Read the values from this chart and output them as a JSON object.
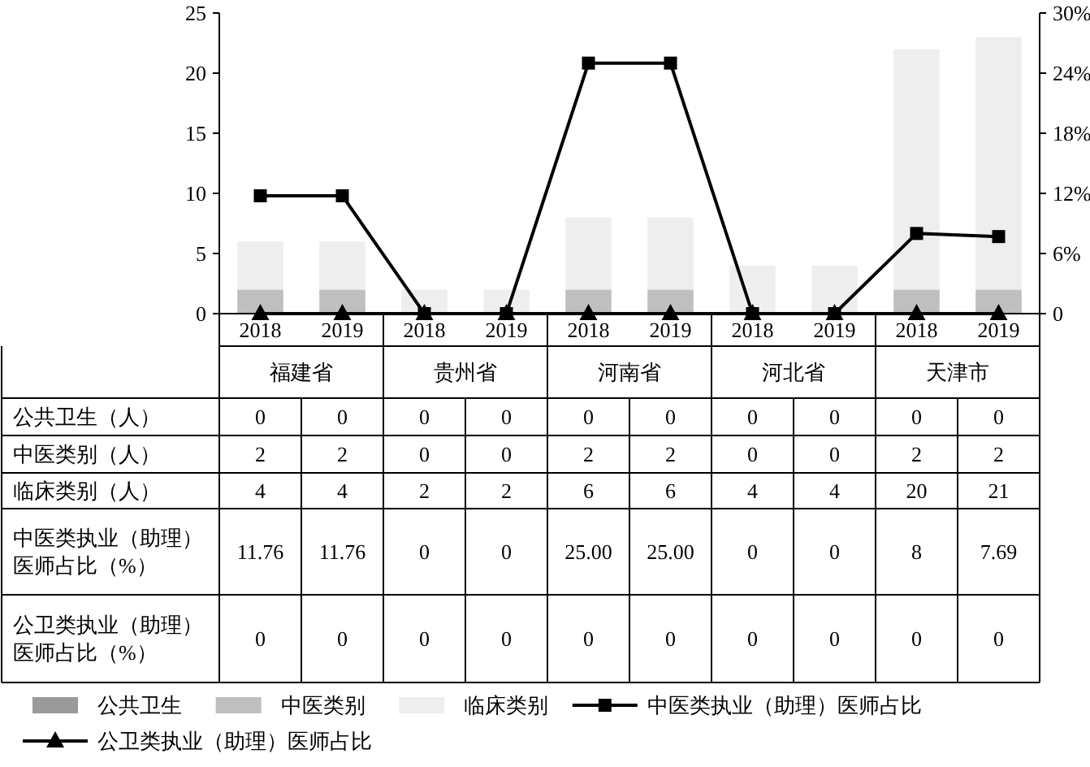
{
  "chart_data": {
    "type": "bar",
    "stacked": true,
    "legend": "bottom",
    "grid": false,
    "data_labels": true,
    "categories": [
      "2018",
      "2019",
      "2018",
      "2019",
      "2018",
      "2019",
      "2018",
      "2019",
      "2018",
      "2019"
    ],
    "annotations": [
      "福建省",
      "贵州省",
      "河南省",
      "河北省",
      "天津市",
      "公共卫生（人）",
      "中医类别（人）",
      "临床类别（人）",
      "中医类执业（助理）医师占比（%）",
      "公卫类执业（助理）医师占比（%）"
    ],
    "ylim": [
      0,
      25
    ],
    "yticks": [
      0,
      5,
      10,
      15,
      20,
      25
    ],
    "y2lim": [
      0,
      30
    ],
    "y2ticks": [
      {
        "value": 0,
        "label": "0"
      },
      {
        "value": 6,
        "label": "6%"
      },
      {
        "value": 12,
        "label": "12%"
      },
      {
        "value": 18,
        "label": "18%"
      },
      {
        "value": 24,
        "label": "24%"
      },
      {
        "value": 30,
        "label": "30%"
      }
    ],
    "series": [
      {
        "name": "公共卫生",
        "color": "#9a9a9a",
        "values": [
          0,
          0,
          0,
          0,
          0,
          0,
          0,
          0,
          0,
          0
        ],
        "value_labels": [
          "0",
          "0",
          "0",
          "0",
          "0",
          "0",
          "0",
          "0",
          "0",
          "0"
        ]
      },
      {
        "name": "中医类别",
        "color": "#bfbfbf",
        "values": [
          2,
          2,
          0,
          0,
          2,
          2,
          0,
          0,
          2,
          2
        ],
        "value_labels": [
          "2",
          "2",
          "0",
          "0",
          "2",
          "2",
          "0",
          "0",
          "2",
          "2"
        ]
      },
      {
        "name": "临床类别",
        "color": "#eeeeee",
        "values": [
          4,
          4,
          2,
          2,
          6,
          6,
          4,
          4,
          20,
          21
        ],
        "value_labels": [
          "4",
          "4",
          "2",
          "2",
          "6",
          "6",
          "4",
          "4",
          "20",
          "21"
        ]
      },
      {
        "name": "中医类执业（助理）医师占比",
        "type": "line",
        "axis": "y2",
        "marker": "square",
        "color": "#000000",
        "values": [
          11.76,
          11.76,
          0,
          0,
          25.0,
          25.0,
          0,
          0,
          8,
          7.69
        ],
        "value_labels": [
          "11.76",
          "11.76",
          "0",
          "0",
          "25.00",
          "25.00",
          "0",
          "0",
          "8",
          "7.69"
        ]
      },
      {
        "name": "公卫类执业（助理）医师占比",
        "type": "line",
        "axis": "y2",
        "marker": "triangle",
        "color": "#000000",
        "values": [
          0,
          0,
          0,
          0,
          0,
          0,
          0,
          0,
          0,
          0
        ],
        "value_labels": [
          "0",
          "0",
          "0",
          "0",
          "0",
          "0",
          "0",
          "0",
          "0",
          "0"
        ]
      }
    ]
  }
}
